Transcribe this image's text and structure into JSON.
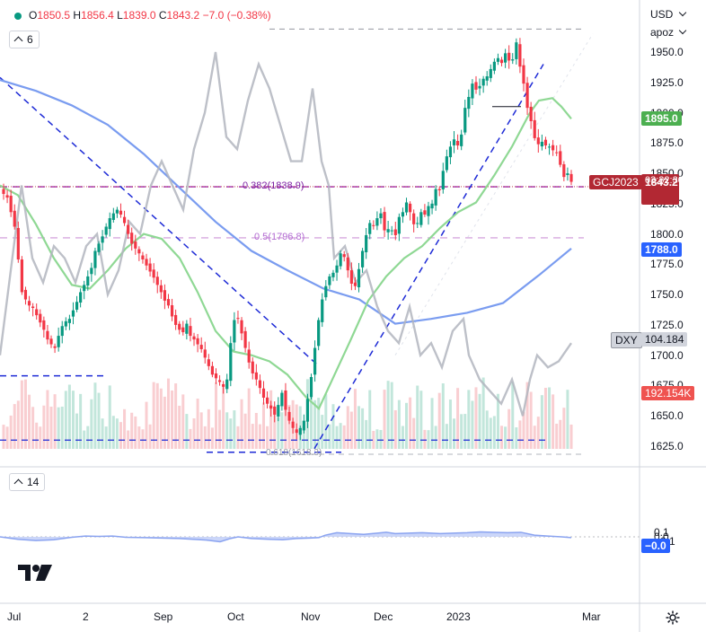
{
  "header": {
    "open_label": "O",
    "open": "1850.5",
    "high_label": "H",
    "high": "1856.4",
    "low_label": "L",
    "low": "1839.0",
    "close_label": "C",
    "close": "1843.2",
    "change": "−7.0 (−0.38%)",
    "indicator_count": "6"
  },
  "oscillator": {
    "count": "14"
  },
  "axis": {
    "currency": "USD",
    "mode": "apoz",
    "price_ticks": [
      "1950.0",
      "1925.0",
      "1900.0",
      "1875.0",
      "1850.0",
      "1825.0",
      "1800.0",
      "1775.0",
      "1750.0",
      "1725.0",
      "1700.0",
      "1675.0",
      "1650.0",
      "1625.0"
    ],
    "osc_ticks": [
      "0.1",
      "0.0",
      "−0.1"
    ],
    "time_ticks": [
      "Jul",
      "2",
      "Sep",
      "Oct",
      "Nov",
      "Dec",
      "2023",
      "Mar"
    ]
  },
  "labels": {
    "fib_382": "0.382(1838.9)",
    "fib_05": "0.5(1796.8)",
    "fib_618": "0.618(1618.3)",
    "symbol_tag": "GCJ2023",
    "price_tag": "1843.2",
    "countdown": "03:32:30",
    "ma_fast_tag": "1895.0",
    "ma_slow_tag": "1788.0",
    "dxy_name": "DXY",
    "dxy_value": "104.184",
    "volume_tag": "192.154K",
    "osc_tag": "−0.0"
  },
  "colors": {
    "up": "#089981",
    "down": "#f23645",
    "ma_fast": "#8fd894",
    "ma_slow": "#7a9cf0",
    "dxy": "#b2b5be",
    "fib": "#9c27b0",
    "trend": "#1e2bd6",
    "osc_fill": "#c2cff8",
    "osc_line": "#8aa3f0"
  },
  "chart_data": {
    "type": "candlestick",
    "symbol": "GCJ2023",
    "currency": "USD",
    "ylim": [
      1610,
      1975
    ],
    "x_ticks": [
      "Jul",
      "2",
      "Sep",
      "Oct",
      "Nov",
      "Dec",
      "2023",
      "Mar"
    ],
    "candle_closes": [
      1833,
      1830,
      1818,
      1806,
      1779,
      1752,
      1746,
      1741,
      1739,
      1733,
      1727,
      1721,
      1713,
      1709,
      1706,
      1716,
      1724,
      1728,
      1730,
      1737,
      1744,
      1752,
      1758,
      1765,
      1772,
      1786,
      1792,
      1798,
      1806,
      1813,
      1817,
      1820,
      1816,
      1809,
      1800,
      1792,
      1788,
      1784,
      1779,
      1774,
      1769,
      1764,
      1758,
      1752,
      1745,
      1741,
      1732,
      1725,
      1721,
      1719,
      1726,
      1716,
      1713,
      1709,
      1705,
      1698,
      1691,
      1684,
      1681,
      1678,
      1674,
      1680,
      1710,
      1729,
      1730,
      1718,
      1706,
      1694,
      1685,
      1680,
      1673,
      1665,
      1660,
      1656,
      1651,
      1659,
      1669,
      1655,
      1646,
      1640,
      1636,
      1640,
      1646,
      1664,
      1682,
      1706,
      1729,
      1746,
      1757,
      1765,
      1768,
      1774,
      1784,
      1781,
      1770,
      1759,
      1757,
      1771,
      1786,
      1799,
      1809,
      1807,
      1813,
      1817,
      1803,
      1804,
      1803,
      1799,
      1814,
      1818,
      1826,
      1818,
      1808,
      1809,
      1818,
      1816,
      1823,
      1825,
      1837,
      1836,
      1852,
      1864,
      1872,
      1878,
      1873,
      1882,
      1904,
      1913,
      1924,
      1919,
      1922,
      1928,
      1930,
      1936,
      1942,
      1945,
      1941,
      1949,
      1943,
      1944,
      1958,
      1938,
      1924,
      1904,
      1893,
      1879,
      1874,
      1876,
      1873,
      1872,
      1869,
      1867,
      1857,
      1847,
      1850,
      1843
    ],
    "ma_fast_last": 1895.0,
    "ma_slow_last": 1788.0,
    "fib_levels": [
      {
        "ratio": 0.382,
        "price": 1838.9
      },
      {
        "ratio": 0.5,
        "price": 1796.8
      },
      {
        "ratio": 0.618,
        "price": 1618.3
      }
    ],
    "last_price": 1843.2,
    "dxy_last": 104.184,
    "volume_last": "192.154K",
    "oscillator_ticks": [
      0.1,
      0.0,
      -0.1
    ],
    "oscillator_last": -0.0
  }
}
